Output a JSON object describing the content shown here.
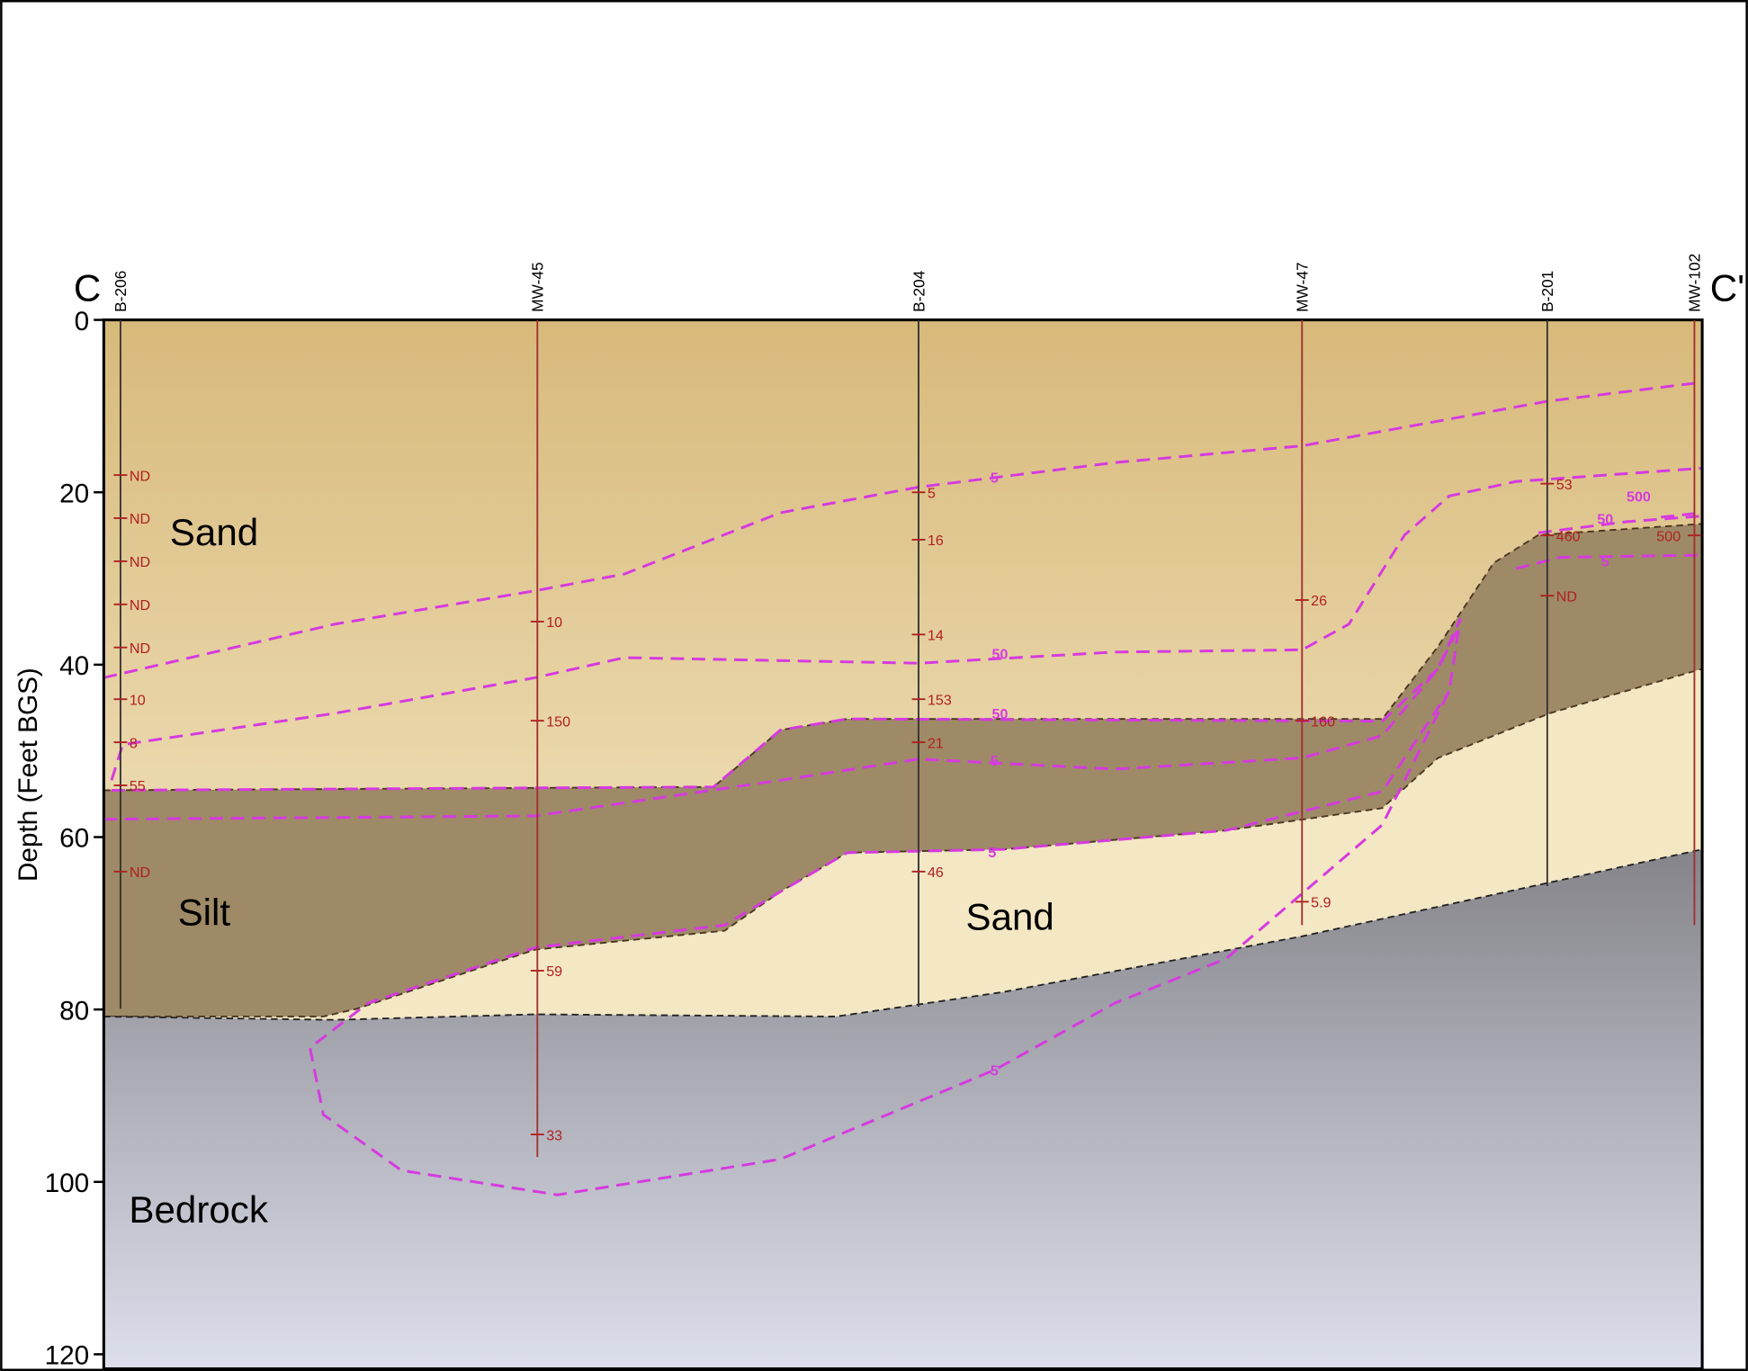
{
  "section": {
    "start_label": "C",
    "end_label": "C'",
    "y_label": "Depth (Feet BGS)",
    "ylim": [
      0,
      120
    ],
    "yticks": [
      0,
      20,
      40,
      60,
      80,
      100,
      120
    ],
    "layers": [
      "Sand",
      "Silt",
      "Sand",
      "Bedrock"
    ],
    "contour_labels": [
      "5",
      "50",
      "50",
      "5",
      "5",
      "5",
      "500",
      "50",
      "5"
    ],
    "wells": [
      {
        "name": "B-206",
        "samples": [
          {
            "label": "ND",
            "depth": 18
          },
          {
            "label": "ND",
            "depth": 23
          },
          {
            "label": "ND",
            "depth": 28
          },
          {
            "label": "ND",
            "depth": 33
          },
          {
            "label": "ND",
            "depth": 38
          },
          {
            "label": "10",
            "depth": 44
          },
          {
            "label": "8",
            "depth": 49
          },
          {
            "label": "55",
            "depth": 54
          },
          {
            "label": "ND",
            "depth": 64
          }
        ]
      },
      {
        "name": "MW-45",
        "samples": [
          {
            "label": "10",
            "depth": 35
          },
          {
            "label": "150",
            "depth": 46.5
          },
          {
            "label": "59",
            "depth": 75.5
          },
          {
            "label": "33",
            "depth": 94.5
          }
        ]
      },
      {
        "name": "B-204",
        "samples": [
          {
            "label": "5",
            "depth": 20
          },
          {
            "label": "16",
            "depth": 25.5
          },
          {
            "label": "14",
            "depth": 36.5
          },
          {
            "label": "153",
            "depth": 44
          },
          {
            "label": "21",
            "depth": 49
          },
          {
            "label": "46",
            "depth": 64
          }
        ]
      },
      {
        "name": "MW-47",
        "samples": [
          {
            "label": "26",
            "depth": 32.5
          },
          {
            "label": "160",
            "depth": 46.5
          },
          {
            "label": "5.9",
            "depth": 67.5
          }
        ]
      },
      {
        "name": "B-201",
        "samples": [
          {
            "label": "53",
            "depth": 19
          },
          {
            "label": "460",
            "depth": 25
          },
          {
            "label": "ND",
            "depth": 32
          }
        ]
      },
      {
        "name": "MW-102",
        "samples": [
          {
            "label": "500",
            "depth": 25
          }
        ]
      }
    ]
  }
}
